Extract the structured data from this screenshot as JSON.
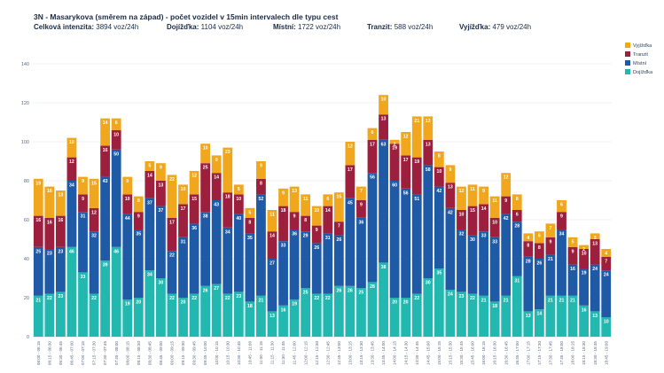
{
  "header": {
    "title": "3N - Masarykova (směrem na západ) - počet vozidel v 15min intervalech dle typu cest"
  },
  "stats": [
    {
      "label": "Celková intenzita:",
      "value": "3894 voz/24h"
    },
    {
      "label": "Dojížďka:",
      "value": "1104 voz/24h"
    },
    {
      "label": "Místní:",
      "value": "1722 voz/24h"
    },
    {
      "label": "Tranzit:",
      "value": "588 voz/24h"
    },
    {
      "label": "Vyjížďka:",
      "value": "479 voz/24h"
    }
  ],
  "chart_data": {
    "type": "bar",
    "stacked": true,
    "ylim": [
      0,
      150
    ],
    "yticks": [
      0,
      20,
      40,
      60,
      80,
      100,
      120,
      140
    ],
    "categories": [
      "06:00 - 06:15",
      "06:15 - 06:30",
      "06:30 - 06:45",
      "06:45 - 07:00",
      "07:00 - 07:15",
      "07:15 - 07:30",
      "07:30 - 07:45",
      "07:45 - 08:00",
      "08:00 - 08:15",
      "08:15 - 08:30",
      "08:30 - 08:45",
      "08:45 - 09:00",
      "09:00 - 09:15",
      "09:15 - 09:30",
      "09:30 - 09:45",
      "09:45 - 10:00",
      "10:00 - 10:15",
      "10:15 - 10:30",
      "10:30 - 10:45",
      "10:45 - 11:00",
      "11:00 - 11:15",
      "11:15 - 11:30",
      "11:30 - 11:45",
      "11:45 - 12:00",
      "12:00 - 12:15",
      "12:15 - 12:30",
      "12:30 - 12:45",
      "12:45 - 13:00",
      "13:00 - 13:15",
      "13:15 - 13:30",
      "13:30 - 13:45",
      "13:45 - 14:00",
      "14:00 - 14:15",
      "14:15 - 14:30",
      "14:30 - 14:45",
      "14:45 - 15:00",
      "15:00 - 15:15",
      "15:15 - 15:30",
      "15:30 - 15:45",
      "15:45 - 16:00",
      "16:00 - 16:15",
      "16:15 - 16:30",
      "16:30 - 16:45",
      "16:45 - 17:00",
      "17:00 - 17:15",
      "17:15 - 17:30",
      "17:30 - 17:45",
      "17:45 - 18:00",
      "18:00 - 18:15",
      "18:15 - 18:30",
      "18:30 - 18:45",
      "18:45 - 19:00"
    ],
    "series": [
      {
        "name": "Dojížďka",
        "color": "#22b8b0",
        "values": [
          21,
          22,
          23,
          46,
          33,
          22,
          39,
          46,
          19,
          20,
          34,
          30,
          22,
          20,
          22,
          26,
          27,
          22,
          23,
          18,
          21,
          13,
          16,
          19,
          25,
          22,
          22,
          26,
          26,
          25,
          28,
          38,
          20,
          20,
          22,
          30,
          35,
          24,
          23,
          22,
          21,
          18,
          21,
          31,
          13,
          14,
          21,
          21,
          21,
          16,
          13,
          10
        ]
      },
      {
        "name": "Místní",
        "color": "#1f5aa6",
        "values": [
          25,
          23,
          23,
          34,
          31,
          32,
          43,
          50,
          44,
          35,
          37,
          37,
          22,
          31,
          36,
          38,
          43,
          34,
          40,
          35,
          52,
          27,
          33,
          36,
          29,
          26,
          31,
          26,
          45,
          36,
          56,
          63,
          60,
          56,
          51,
          58,
          42,
          42,
          32,
          30,
          33,
          33,
          42,
          28,
          28,
          26,
          21,
          34,
          16,
          19,
          24,
          24
        ]
      },
      {
        "name": "Tranzit",
        "color": "#9c1f3e",
        "values": [
          16,
          16,
          16,
          12,
          9,
          12,
          16,
          10,
          10,
          9,
          14,
          13,
          17,
          17,
          15,
          25,
          14,
          18,
          10,
          8,
          8,
          14,
          18,
          9,
          8,
          9,
          14,
          7,
          17,
          9,
          17,
          13,
          19,
          17,
          19,
          13,
          10,
          13,
          10,
          15,
          14,
          10,
          9,
          6,
          8,
          8,
          9,
          9,
          9,
          10,
          13,
          7
        ]
      },
      {
        "name": "Vyjížďka",
        "color": "#f0a71e",
        "values": [
          19,
          16,
          13,
          10,
          9,
          15,
          14,
          6,
          9,
          8,
          5,
          9,
          22,
          10,
          12,
          10,
          9,
          23,
          5,
          5,
          9,
          11,
          9,
          13,
          11,
          10,
          6,
          15,
          12,
          7,
          6,
          10,
          2,
          12,
          21,
          12,
          8,
          9,
          12,
          11,
          9,
          11,
          12,
          8,
          4,
          6,
          7,
          6,
          5,
          2,
          3,
          4
        ]
      }
    ],
    "legend": {
      "position": "top-right",
      "order": [
        "Vyjížďka",
        "Tranzit",
        "Místní",
        "Dojížďka"
      ]
    }
  }
}
